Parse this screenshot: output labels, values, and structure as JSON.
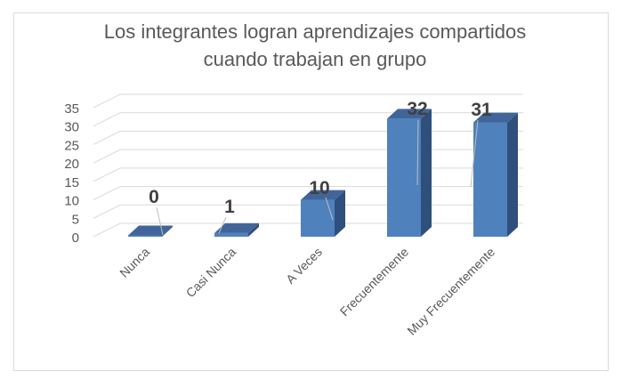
{
  "chart_data": {
    "type": "bar",
    "title_lines": [
      "Los integrantes logran aprendizajes compartidos",
      "cuando trabajan en grupo"
    ],
    "categories": [
      "Nunca",
      "Casi Nunca",
      "A Veces",
      "Frecuentemente",
      "Muy Frecuentemente"
    ],
    "values": [
      0,
      1,
      10,
      32,
      31
    ],
    "data_labels": [
      "0",
      "1",
      "10",
      "32",
      "31"
    ],
    "ylim": [
      0,
      35
    ],
    "yticks": [
      0,
      5,
      10,
      15,
      20,
      25,
      30,
      35
    ],
    "grid": true,
    "legend": "none",
    "style": "3d-column",
    "colors": {
      "bar_front": "#4f81bd",
      "bar_top": "#41659a",
      "bar_side": "#2f4f7c",
      "grid": "#d9d9d9",
      "tick_text": "#595959",
      "label_text": "#404040",
      "title_text": "#595959"
    }
  }
}
